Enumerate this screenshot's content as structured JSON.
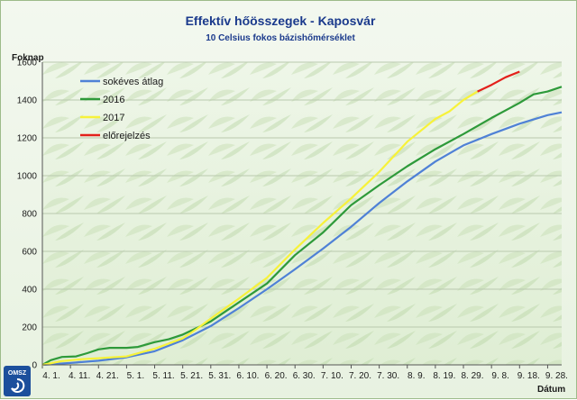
{
  "chart_data": {
    "type": "line",
    "title": "Effektív hőösszegek - Kaposvár",
    "subtitle": "10 Celsius fokos bázishőmérséklet",
    "ylabel": "Foknap",
    "xlabel": "Dátum",
    "ylim": [
      0,
      1600
    ],
    "yticks": [
      0,
      200,
      400,
      600,
      800,
      1000,
      1200,
      1400,
      1600
    ],
    "xlim": [
      "04-01",
      "10-03"
    ],
    "xticks": [
      {
        "date": "04-01",
        "label": "4. 1."
      },
      {
        "date": "04-11",
        "label": "4. 11."
      },
      {
        "date": "04-21",
        "label": "4. 21."
      },
      {
        "date": "05-01",
        "label": "5. 1."
      },
      {
        "date": "05-11",
        "label": "5. 11."
      },
      {
        "date": "05-21",
        "label": "5. 21."
      },
      {
        "date": "05-31",
        "label": "5. 31."
      },
      {
        "date": "06-10",
        "label": "6. 10."
      },
      {
        "date": "06-20",
        "label": "6. 20."
      },
      {
        "date": "06-30",
        "label": "6. 30."
      },
      {
        "date": "07-10",
        "label": "7. 10."
      },
      {
        "date": "07-20",
        "label": "7. 20."
      },
      {
        "date": "07-30",
        "label": "7. 30."
      },
      {
        "date": "08-09",
        "label": "8. 9."
      },
      {
        "date": "08-19",
        "label": "8. 19."
      },
      {
        "date": "08-29",
        "label": "8. 29."
      },
      {
        "date": "09-08",
        "label": "9. 8."
      },
      {
        "date": "09-18",
        "label": "9. 18."
      },
      {
        "date": "09-28",
        "label": "9. 28."
      }
    ],
    "grid": true,
    "legend_position": "top-left",
    "logo_text": "OMSZ",
    "series": [
      {
        "name": "sokéves átlag",
        "color": "#4f81d6",
        "points": [
          [
            "04-01",
            0
          ],
          [
            "04-11",
            10
          ],
          [
            "04-21",
            22
          ],
          [
            "05-01",
            40
          ],
          [
            "05-11",
            72
          ],
          [
            "05-21",
            130
          ],
          [
            "05-31",
            205
          ],
          [
            "06-10",
            300
          ],
          [
            "06-20",
            400
          ],
          [
            "06-30",
            505
          ],
          [
            "07-10",
            615
          ],
          [
            "07-20",
            730
          ],
          [
            "07-30",
            855
          ],
          [
            "08-09",
            970
          ],
          [
            "08-19",
            1075
          ],
          [
            "08-29",
            1160
          ],
          [
            "09-08",
            1220
          ],
          [
            "09-18",
            1275
          ],
          [
            "09-28",
            1320
          ],
          [
            "10-03",
            1335
          ]
        ]
      },
      {
        "name": "2016",
        "color": "#2e9a3a",
        "points": [
          [
            "04-01",
            0
          ],
          [
            "04-04",
            25
          ],
          [
            "04-08",
            42
          ],
          [
            "04-13",
            45
          ],
          [
            "04-17",
            62
          ],
          [
            "04-21",
            82
          ],
          [
            "04-25",
            90
          ],
          [
            "05-01",
            90
          ],
          [
            "05-05",
            95
          ],
          [
            "05-11",
            120
          ],
          [
            "05-16",
            135
          ],
          [
            "05-21",
            160
          ],
          [
            "05-31",
            230
          ],
          [
            "06-10",
            330
          ],
          [
            "06-20",
            430
          ],
          [
            "06-30",
            580
          ],
          [
            "07-10",
            700
          ],
          [
            "07-20",
            845
          ],
          [
            "07-30",
            950
          ],
          [
            "08-09",
            1050
          ],
          [
            "08-19",
            1140
          ],
          [
            "08-29",
            1220
          ],
          [
            "09-08",
            1305
          ],
          [
            "09-18",
            1385
          ],
          [
            "09-23",
            1430
          ],
          [
            "09-28",
            1445
          ],
          [
            "10-03",
            1470
          ]
        ]
      },
      {
        "name": "2017",
        "color": "#f7f23a",
        "points": [
          [
            "04-01",
            0
          ],
          [
            "04-08",
            20
          ],
          [
            "04-15",
            30
          ],
          [
            "04-21",
            35
          ],
          [
            "05-01",
            45
          ],
          [
            "05-11",
            85
          ],
          [
            "05-21",
            140
          ],
          [
            "05-26",
            190
          ],
          [
            "05-31",
            245
          ],
          [
            "06-10",
            350
          ],
          [
            "06-20",
            460
          ],
          [
            "06-30",
            610
          ],
          [
            "07-10",
            750
          ],
          [
            "07-20",
            880
          ],
          [
            "07-30",
            1020
          ],
          [
            "08-09",
            1180
          ],
          [
            "08-19",
            1300
          ],
          [
            "08-24",
            1340
          ],
          [
            "08-29",
            1400
          ],
          [
            "09-03",
            1445
          ]
        ]
      },
      {
        "name": "előrejelzés",
        "color": "#e3201b",
        "points": [
          [
            "09-03",
            1445
          ],
          [
            "09-08",
            1480
          ],
          [
            "09-13",
            1520
          ],
          [
            "09-18",
            1550
          ]
        ]
      }
    ]
  }
}
